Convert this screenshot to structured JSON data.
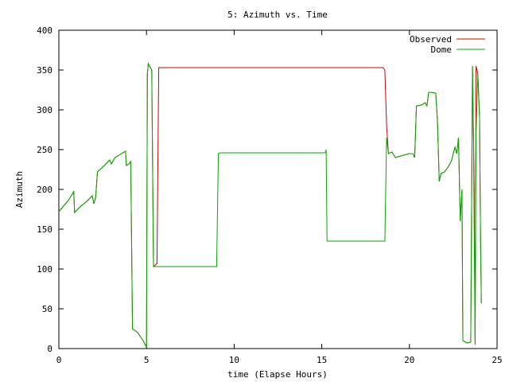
{
  "chart_data": {
    "type": "line",
    "title": "5: Azimuth vs. Time",
    "xlabel": "time (Elapse Hours)",
    "ylabel": "Azimuth",
    "xlim": [
      0,
      25
    ],
    "ylim": [
      0,
      400
    ],
    "x_ticks": [
      0,
      5,
      10,
      15,
      20,
      25
    ],
    "y_ticks": [
      0,
      50,
      100,
      150,
      200,
      250,
      300,
      350,
      400
    ],
    "grid": false,
    "legend_position": "top-right",
    "series": [
      {
        "name": "Observed",
        "color": "#cc0000",
        "points": [
          [
            0.0,
            172
          ],
          [
            0.3,
            180
          ],
          [
            0.5,
            185
          ],
          [
            0.8,
            195
          ],
          [
            0.85,
            198
          ],
          [
            0.9,
            171
          ],
          [
            1.3,
            180
          ],
          [
            1.6,
            185
          ],
          [
            1.9,
            192
          ],
          [
            2.0,
            182
          ],
          [
            2.1,
            190
          ],
          [
            2.2,
            222
          ],
          [
            2.6,
            230
          ],
          [
            2.9,
            237
          ],
          [
            3.0,
            232
          ],
          [
            3.2,
            240
          ],
          [
            3.5,
            244
          ],
          [
            3.8,
            248
          ],
          [
            3.85,
            230
          ],
          [
            4.0,
            232
          ],
          [
            4.1,
            235
          ],
          [
            4.2,
            25
          ],
          [
            4.5,
            20
          ],
          [
            4.8,
            10
          ],
          [
            5.0,
            2
          ],
          [
            5.05,
            345
          ],
          [
            5.1,
            358
          ],
          [
            5.15,
            356
          ],
          [
            5.3,
            350
          ],
          [
            5.4,
            103
          ],
          [
            5.6,
            107
          ],
          [
            5.7,
            353
          ],
          [
            9.0,
            353
          ],
          [
            12.0,
            353
          ],
          [
            15.0,
            353
          ],
          [
            18.5,
            353
          ],
          [
            18.6,
            350
          ],
          [
            18.7,
            280
          ],
          [
            18.8,
            245
          ],
          [
            19.0,
            247
          ],
          [
            19.2,
            240
          ],
          [
            19.5,
            242
          ],
          [
            20.0,
            245
          ],
          [
            20.2,
            245
          ],
          [
            20.3,
            240
          ],
          [
            20.4,
            305
          ],
          [
            20.7,
            306
          ],
          [
            20.9,
            309
          ],
          [
            21.0,
            305
          ],
          [
            21.1,
            322
          ],
          [
            21.2,
            322
          ],
          [
            21.5,
            321
          ],
          [
            21.6,
            285
          ],
          [
            21.7,
            210
          ],
          [
            21.8,
            220
          ],
          [
            22.0,
            222
          ],
          [
            22.2,
            228
          ],
          [
            22.4,
            236
          ],
          [
            22.5,
            245
          ],
          [
            22.6,
            253
          ],
          [
            22.7,
            245
          ],
          [
            22.8,
            265
          ],
          [
            22.9,
            160
          ],
          [
            23.0,
            200
          ],
          [
            23.05,
            10
          ],
          [
            23.3,
            7
          ],
          [
            23.5,
            8
          ],
          [
            23.6,
            355
          ],
          [
            23.7,
            200
          ],
          [
            23.75,
            5
          ],
          [
            23.8,
            355
          ],
          [
            23.9,
            345
          ],
          [
            24.0,
            290
          ],
          [
            24.05,
            150
          ],
          [
            24.1,
            57
          ]
        ]
      },
      {
        "name": "Dome",
        "color": "#00aa00",
        "points": [
          [
            0.0,
            172
          ],
          [
            0.3,
            180
          ],
          [
            0.5,
            185
          ],
          [
            0.8,
            195
          ],
          [
            0.85,
            198
          ],
          [
            0.9,
            171
          ],
          [
            1.3,
            180
          ],
          [
            1.6,
            185
          ],
          [
            1.9,
            192
          ],
          [
            2.0,
            182
          ],
          [
            2.1,
            190
          ],
          [
            2.2,
            222
          ],
          [
            2.6,
            230
          ],
          [
            2.9,
            237
          ],
          [
            3.0,
            232
          ],
          [
            3.2,
            240
          ],
          [
            3.5,
            244
          ],
          [
            3.8,
            248
          ],
          [
            3.85,
            230
          ],
          [
            4.0,
            232
          ],
          [
            4.1,
            235
          ],
          [
            4.2,
            25
          ],
          [
            4.5,
            20
          ],
          [
            4.8,
            10
          ],
          [
            5.0,
            2
          ],
          [
            5.05,
            345
          ],
          [
            5.1,
            358
          ],
          [
            5.15,
            356
          ],
          [
            5.3,
            350
          ],
          [
            5.4,
            103
          ],
          [
            9.0,
            103
          ],
          [
            9.1,
            245
          ],
          [
            9.2,
            246
          ],
          [
            12.0,
            246
          ],
          [
            15.0,
            246
          ],
          [
            15.2,
            246
          ],
          [
            15.25,
            250
          ],
          [
            15.3,
            135
          ],
          [
            16.0,
            135
          ],
          [
            18.0,
            135
          ],
          [
            18.6,
            135
          ],
          [
            18.7,
            265
          ],
          [
            18.8,
            245
          ],
          [
            19.0,
            247
          ],
          [
            19.2,
            240
          ],
          [
            19.5,
            242
          ],
          [
            20.0,
            245
          ],
          [
            20.2,
            245
          ],
          [
            20.3,
            240
          ],
          [
            20.4,
            305
          ],
          [
            20.7,
            306
          ],
          [
            20.9,
            309
          ],
          [
            21.0,
            305
          ],
          [
            21.1,
            322
          ],
          [
            21.2,
            322
          ],
          [
            21.5,
            321
          ],
          [
            21.6,
            285
          ],
          [
            21.7,
            210
          ],
          [
            21.8,
            220
          ],
          [
            22.0,
            222
          ],
          [
            22.2,
            228
          ],
          [
            22.4,
            236
          ],
          [
            22.5,
            245
          ],
          [
            22.6,
            253
          ],
          [
            22.7,
            245
          ],
          [
            22.8,
            265
          ],
          [
            22.9,
            160
          ],
          [
            23.0,
            200
          ],
          [
            23.05,
            10
          ],
          [
            23.3,
            7
          ],
          [
            23.5,
            8
          ],
          [
            23.6,
            355
          ],
          [
            23.65,
            275
          ],
          [
            23.75,
            5
          ],
          [
            23.8,
            270
          ],
          [
            23.9,
            345
          ],
          [
            24.0,
            290
          ],
          [
            24.05,
            150
          ],
          [
            24.1,
            57
          ]
        ]
      }
    ]
  }
}
